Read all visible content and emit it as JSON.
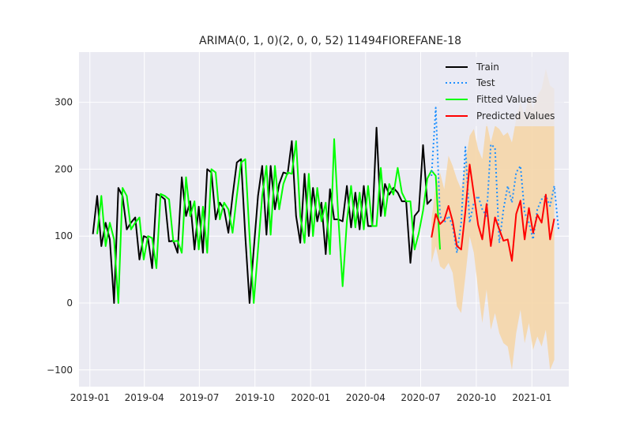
{
  "chart_data": {
    "type": "line",
    "title": "ARIMA(0, 1, 0)(2, 0, 0, 52) 11494FIOREFANE-18",
    "xlabel": "",
    "ylabel": "",
    "xlim": [
      "2018-12-14",
      "2021-03-03"
    ],
    "ylim": [
      -125,
      375
    ],
    "x_ticks": [
      "2019-01",
      "2019-04",
      "2019-07",
      "2019-10",
      "2020-01",
      "2020-04",
      "2020-07",
      "2020-10",
      "2021-01"
    ],
    "y_ticks": [
      -100,
      0,
      100,
      200,
      300
    ],
    "grid": true,
    "legend": {
      "position": "top-right",
      "entries": [
        "Train",
        "Test",
        "Fitted Values",
        "Predicted Values"
      ]
    },
    "colors": {
      "train": "#000000",
      "test": "#1e90ff",
      "fitted": "#00ff00",
      "predicted": "#ff0000",
      "band": "#f5d6a8",
      "background": "#eaeaf2",
      "grid": "#ffffff"
    },
    "series": [
      {
        "name": "Train",
        "start": "2019-01-06",
        "step_days": 7,
        "values": [
          103,
          160,
          85,
          120,
          95,
          0,
          172,
          160,
          110,
          120,
          128,
          65,
          100,
          97,
          52,
          163,
          160,
          155,
          92,
          93,
          75,
          188,
          130,
          152,
          80,
          144,
          75,
          200,
          195,
          125,
          150,
          140,
          105,
          160,
          210,
          215,
          100,
          0,
          80,
          160,
          205,
          102,
          205,
          140,
          178,
          195,
          193,
          242,
          130,
          90,
          193,
          100,
          172,
          122,
          150,
          73,
          170,
          125,
          125,
          122,
          175,
          113,
          165,
          110,
          175,
          115,
          115,
          262,
          130,
          178,
          162,
          172,
          165,
          152,
          152,
          60,
          130,
          138,
          236,
          148,
          155
        ]
      },
      {
        "name": "Fitted Values",
        "start": "2019-01-13",
        "step_days": 7,
        "values": [
          103,
          160,
          85,
          120,
          95,
          0,
          172,
          160,
          110,
          120,
          128,
          65,
          100,
          97,
          52,
          163,
          160,
          155,
          92,
          93,
          75,
          188,
          130,
          152,
          80,
          144,
          75,
          200,
          195,
          125,
          150,
          140,
          105,
          160,
          210,
          215,
          100,
          0,
          80,
          160,
          205,
          102,
          205,
          140,
          178,
          195,
          193,
          242,
          130,
          90,
          193,
          100,
          172,
          122,
          150,
          73,
          245,
          125,
          25,
          122,
          175,
          113,
          165,
          110,
          175,
          115,
          115,
          202,
          130,
          178,
          162,
          202,
          165,
          152,
          152,
          80,
          105,
          138,
          186,
          198,
          190,
          80
        ]
      },
      {
        "name": "Test",
        "start": "2020-07-19",
        "step_days": 7,
        "values": [
          190,
          292,
          130,
          120,
          130,
          115,
          75,
          120,
          233,
          120,
          150,
          160,
          140,
          130,
          237,
          232,
          90,
          140,
          175,
          150,
          195,
          205,
          135,
          120,
          95,
          140,
          155,
          160,
          145,
          175,
          110
        ]
      },
      {
        "name": "Predicted Values",
        "start": "2020-07-19",
        "step_days": 7,
        "values": [
          98,
          133,
          118,
          124,
          145,
          122,
          85,
          80,
          137,
          207,
          163,
          117,
          95,
          148,
          85,
          128,
          110,
          93,
          95,
          63,
          133,
          153,
          95,
          142,
          105,
          132,
          120,
          162,
          95,
          126
        ]
      }
    ],
    "confidence_band": {
      "start": "2020-07-19",
      "step_days": 7,
      "upper": [
        125,
        175,
        195,
        170,
        220,
        205,
        185,
        170,
        210,
        250,
        260,
        230,
        215,
        270,
        240,
        265,
        260,
        250,
        255,
        240,
        275,
        300,
        280,
        310,
        290,
        310,
        320,
        350,
        325,
        320
      ],
      "lower": [
        60,
        85,
        55,
        50,
        60,
        45,
        -5,
        -15,
        40,
        100,
        75,
        20,
        -30,
        20,
        -40,
        -15,
        -45,
        -60,
        -65,
        -100,
        -45,
        -10,
        -60,
        -30,
        -70,
        -50,
        -65,
        -40,
        -100,
        -85
      ]
    }
  }
}
